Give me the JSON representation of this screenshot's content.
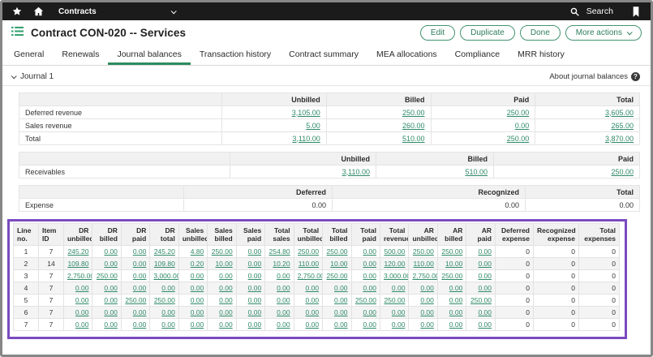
{
  "topbar": {
    "app": "Contracts",
    "search": "Search"
  },
  "header": {
    "title": "Contract CON-020 -- Services",
    "edit": "Edit",
    "duplicate": "Duplicate",
    "done": "Done",
    "more_actions": "More actions"
  },
  "tabs": [
    "General",
    "Renewals",
    "Journal balances",
    "Transaction history",
    "Contract summary",
    "MEA allocations",
    "Compliance",
    "MRR history"
  ],
  "active_tab": "Journal balances",
  "journal": {
    "title": "Journal 1",
    "about": "About journal balances"
  },
  "tables": {
    "revenue": {
      "headers": [
        "",
        "Unbilled",
        "Billed",
        "Paid",
        "Total"
      ],
      "rows": [
        {
          "label": "Deferred revenue",
          "values": [
            "3,105.00",
            "250.00",
            "250.00",
            "3,605.00"
          ],
          "links": true
        },
        {
          "label": "Sales revenue",
          "values": [
            "5.00",
            "260.00",
            "0.00",
            "265.00"
          ],
          "links": true
        },
        {
          "label": "Total",
          "values": [
            "3,110.00",
            "510.00",
            "250.00",
            "3,870.00"
          ],
          "links": true
        }
      ]
    },
    "receivables": {
      "headers": [
        "",
        "Unbilled",
        "Billed",
        "Paid"
      ],
      "rows": [
        {
          "label": "Receivables",
          "values": [
            "3,110.00",
            "510.00",
            "250.00"
          ],
          "links": true
        }
      ]
    },
    "expense": {
      "headers": [
        "",
        "Deferred",
        "Recognized",
        "Total"
      ],
      "rows": [
        {
          "label": "Expense",
          "values": [
            "0.00",
            "0.00",
            "0.00"
          ],
          "links": false
        }
      ]
    },
    "lines": {
      "headers": [
        "Line no.",
        "Item ID",
        "DR unbilled",
        "DR billed",
        "DR paid",
        "DR total",
        "Sales unbilled",
        "Sales billed",
        "Sales paid",
        "Total sales",
        "Total unbilled",
        "Total billed",
        "Total paid",
        "Total revenue",
        "AR unbilled",
        "AR billed",
        "AR paid",
        "Deferred expense",
        "Recognized expense",
        "Total expenses"
      ],
      "plain_cols": [
        0,
        1,
        17,
        18,
        19
      ],
      "rows": [
        [
          "1",
          "7",
          "245.20",
          "0.00",
          "0.00",
          "245.20",
          "4.80",
          "250.00",
          "0.00",
          "254.80",
          "250.00",
          "250.00",
          "0.00",
          "500.00",
          "250.00",
          "250.00",
          "0.00",
          "0",
          "0",
          "0"
        ],
        [
          "2",
          "14",
          "109.80",
          "0.00",
          "0.00",
          "109.80",
          "0.20",
          "10.00",
          "0.00",
          "10.20",
          "110.00",
          "10.00",
          "0.00",
          "120.00",
          "110.00",
          "10.00",
          "0.00",
          "0",
          "0",
          "0"
        ],
        [
          "3",
          "7",
          "2,750.00",
          "250.00",
          "0.00",
          "3,000.00",
          "0.00",
          "0.00",
          "0.00",
          "0.00",
          "2,750.00",
          "250.00",
          "0.00",
          "3,000.00",
          "2,750.00",
          "250.00",
          "0.00",
          "0",
          "0",
          "0"
        ],
        [
          "4",
          "7",
          "0.00",
          "0.00",
          "0.00",
          "0.00",
          "0.00",
          "0.00",
          "0.00",
          "0.00",
          "0.00",
          "0.00",
          "0.00",
          "0.00",
          "0.00",
          "0.00",
          "0.00",
          "0",
          "0",
          "0"
        ],
        [
          "5",
          "7",
          "0.00",
          "0.00",
          "250.00",
          "250.00",
          "0.00",
          "0.00",
          "0.00",
          "0.00",
          "0.00",
          "0.00",
          "250.00",
          "250.00",
          "0.00",
          "0.00",
          "250.00",
          "0",
          "0",
          "0"
        ],
        [
          "6",
          "7",
          "0.00",
          "0.00",
          "0.00",
          "0.00",
          "0.00",
          "0.00",
          "0.00",
          "0.00",
          "0.00",
          "0.00",
          "0.00",
          "0.00",
          "0.00",
          "0.00",
          "0.00",
          "0",
          "0",
          "0"
        ],
        [
          "7",
          "7",
          "0.00",
          "0.00",
          "0.00",
          "0.00",
          "0.00",
          "0.00",
          "0.00",
          "0.00",
          "0.00",
          "0.00",
          "0.00",
          "0.00",
          "0.00",
          "0.00",
          "0.00",
          "0",
          "0",
          "0"
        ]
      ]
    }
  },
  "colors": {
    "accent_green": "#2f8a68",
    "highlight_purple": "#7a4bc0",
    "topbar_black": "#1b1b1b",
    "link_green": "#2f8a68"
  }
}
